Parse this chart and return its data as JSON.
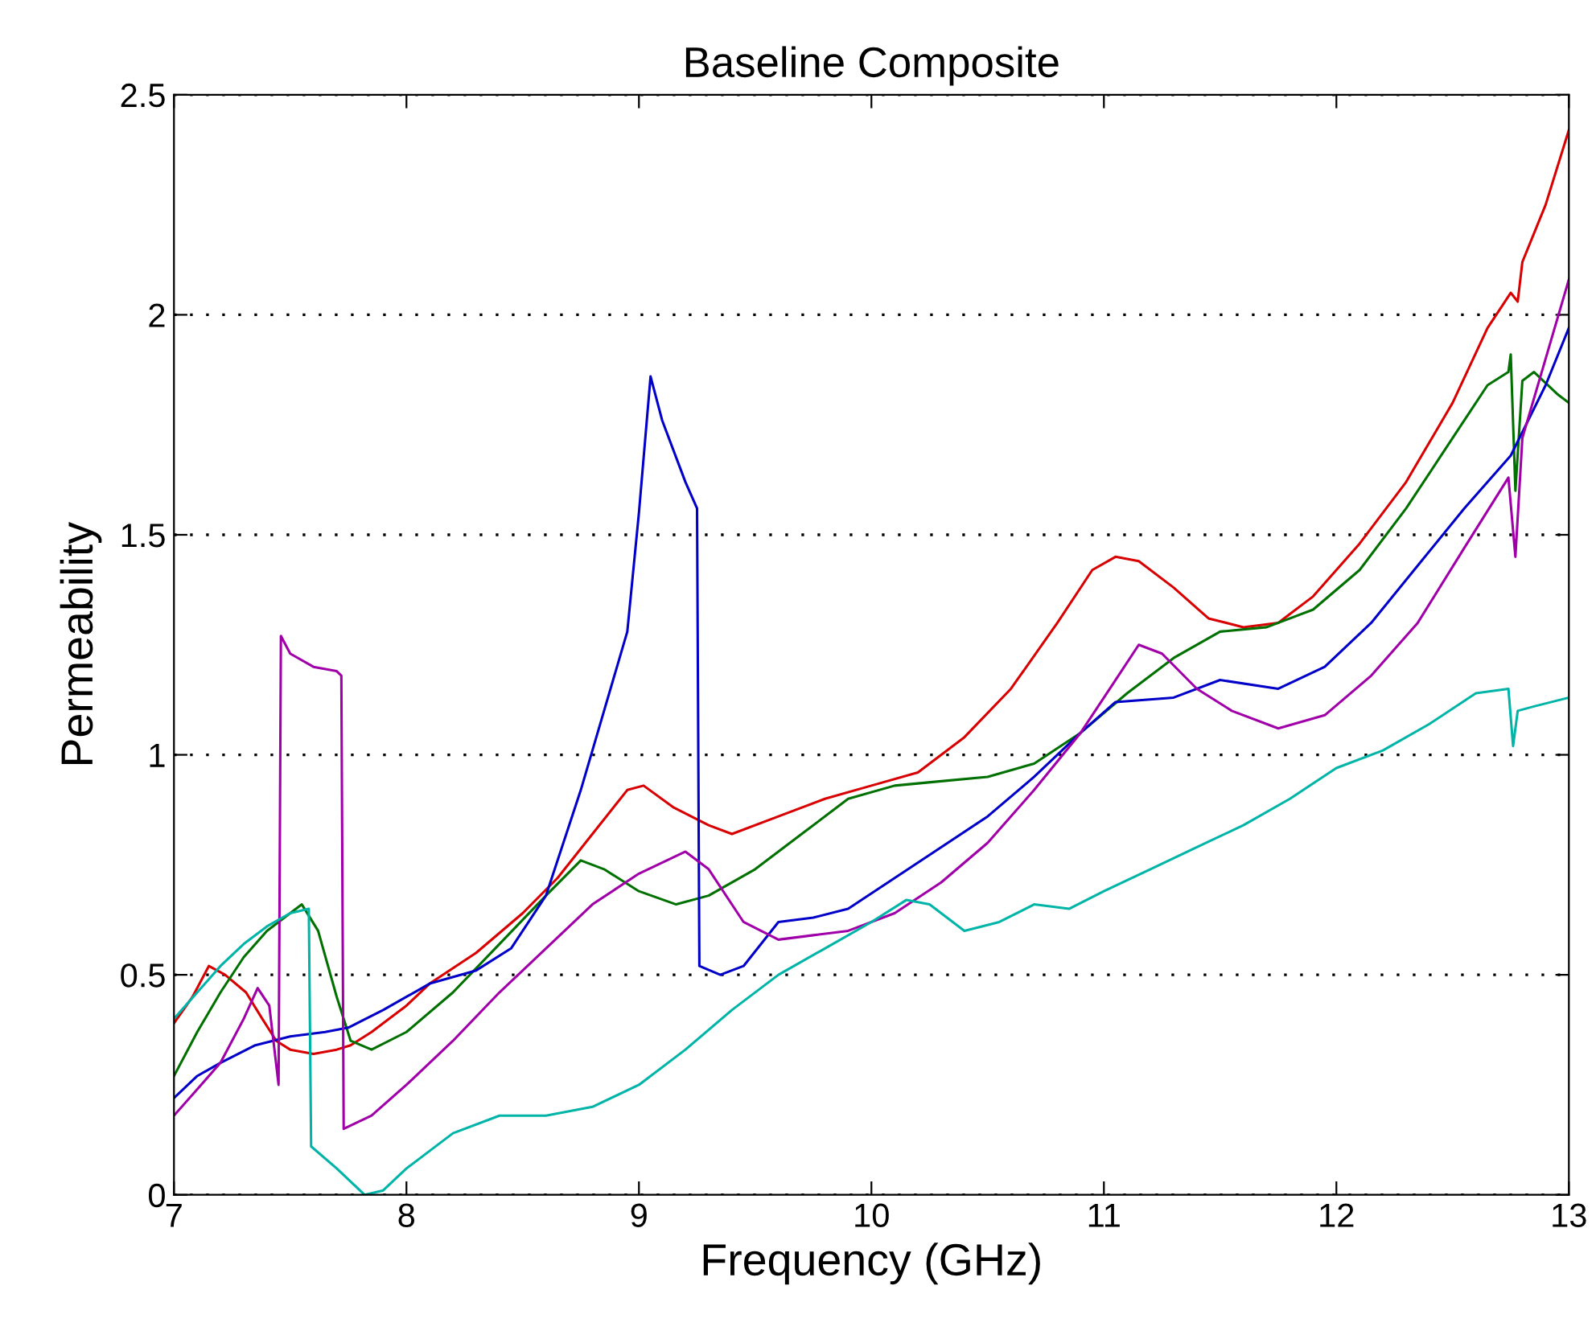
{
  "chart_data": {
    "type": "line",
    "title": "Baseline Composite",
    "xlabel": "Frequency (GHz)",
    "ylabel": "Permeability",
    "xlim": [
      7,
      13
    ],
    "ylim": [
      0,
      2.5
    ],
    "xticks": [
      7,
      8,
      9,
      10,
      11,
      12,
      13
    ],
    "yticks": [
      0,
      0.5,
      1,
      1.5,
      2,
      2.5
    ],
    "grid": "y",
    "line_style": "solid",
    "marker": "none",
    "series": [
      {
        "color": "#d80000",
        "x": [
          7,
          7.08,
          7.15,
          7.22,
          7.31,
          7.38,
          7.44,
          7.5,
          7.6,
          7.7,
          7.76,
          7.85,
          8.0,
          8.1,
          8.3,
          8.5,
          8.65,
          8.8,
          8.95,
          9.02,
          9.15,
          9.3,
          9.4,
          9.6,
          9.8,
          10.0,
          10.2,
          10.4,
          10.6,
          10.8,
          10.95,
          11.05,
          11.15,
          11.3,
          11.45,
          11.6,
          11.75,
          11.9,
          12.1,
          12.3,
          12.5,
          12.65,
          12.75,
          12.78,
          12.8,
          12.9,
          13
        ],
        "values": [
          0.39,
          0.45,
          0.52,
          0.5,
          0.46,
          0.4,
          0.35,
          0.33,
          0.32,
          0.33,
          0.34,
          0.37,
          0.43,
          0.48,
          0.55,
          0.64,
          0.72,
          0.82,
          0.92,
          0.93,
          0.88,
          0.84,
          0.82,
          0.86,
          0.9,
          0.93,
          0.96,
          1.04,
          1.15,
          1.3,
          1.42,
          1.45,
          1.44,
          1.38,
          1.31,
          1.29,
          1.3,
          1.36,
          1.48,
          1.62,
          1.8,
          1.97,
          2.05,
          2.03,
          2.12,
          2.25,
          2.42
        ]
      },
      {
        "color": "#007000",
        "x": [
          7,
          7.1,
          7.2,
          7.3,
          7.4,
          7.5,
          7.55,
          7.62,
          7.7,
          7.76,
          7.85,
          8.0,
          8.2,
          8.4,
          8.6,
          8.75,
          8.85,
          9.0,
          9.16,
          9.3,
          9.5,
          9.7,
          9.9,
          10.1,
          10.3,
          10.5,
          10.7,
          10.9,
          11.1,
          11.3,
          11.5,
          11.7,
          11.9,
          12.1,
          12.3,
          12.5,
          12.65,
          12.74,
          12.75,
          12.77,
          12.8,
          12.85,
          12.95,
          13
        ],
        "values": [
          0.27,
          0.37,
          0.46,
          0.54,
          0.6,
          0.64,
          0.66,
          0.6,
          0.45,
          0.35,
          0.33,
          0.37,
          0.46,
          0.57,
          0.68,
          0.76,
          0.74,
          0.69,
          0.66,
          0.68,
          0.74,
          0.82,
          0.9,
          0.93,
          0.94,
          0.95,
          0.98,
          1.05,
          1.14,
          1.22,
          1.28,
          1.29,
          1.33,
          1.42,
          1.56,
          1.72,
          1.84,
          1.87,
          1.91,
          1.6,
          1.85,
          1.87,
          1.82,
          1.8
        ]
      },
      {
        "color": "#0000c8",
        "x": [
          7,
          7.1,
          7.2,
          7.35,
          7.5,
          7.65,
          7.75,
          7.9,
          8.1,
          8.3,
          8.45,
          8.6,
          8.75,
          8.85,
          8.95,
          9.0,
          9.05,
          9.1,
          9.2,
          9.25,
          9.26,
          9.35,
          9.45,
          9.6,
          9.75,
          9.9,
          10.1,
          10.3,
          10.5,
          10.7,
          10.9,
          11.05,
          11.3,
          11.5,
          11.75,
          11.95,
          12.15,
          12.35,
          12.55,
          12.75,
          12.9,
          13
        ],
        "values": [
          0.22,
          0.27,
          0.3,
          0.34,
          0.36,
          0.37,
          0.38,
          0.42,
          0.48,
          0.51,
          0.56,
          0.68,
          0.92,
          1.1,
          1.28,
          1.55,
          1.86,
          1.76,
          1.62,
          1.56,
          0.52,
          0.5,
          0.52,
          0.62,
          0.63,
          0.65,
          0.72,
          0.79,
          0.86,
          0.95,
          1.05,
          1.12,
          1.13,
          1.17,
          1.15,
          1.2,
          1.3,
          1.43,
          1.56,
          1.68,
          1.84,
          1.97
        ]
      },
      {
        "color": "#a000a8",
        "x": [
          7,
          7.1,
          7.2,
          7.3,
          7.36,
          7.41,
          7.45,
          7.46,
          7.5,
          7.6,
          7.7,
          7.72,
          7.73,
          7.85,
          8.0,
          8.2,
          8.4,
          8.6,
          8.8,
          9.0,
          9.2,
          9.3,
          9.45,
          9.6,
          9.75,
          9.9,
          10.1,
          10.3,
          10.5,
          10.7,
          10.9,
          11.05,
          11.15,
          11.25,
          11.4,
          11.55,
          11.75,
          11.95,
          12.15,
          12.35,
          12.55,
          12.74,
          12.77,
          12.8,
          12.9,
          13
        ],
        "values": [
          0.18,
          0.24,
          0.3,
          0.4,
          0.47,
          0.43,
          0.25,
          1.27,
          1.23,
          1.2,
          1.19,
          1.18,
          0.15,
          0.18,
          0.25,
          0.35,
          0.46,
          0.56,
          0.66,
          0.73,
          0.78,
          0.74,
          0.62,
          0.58,
          0.59,
          0.6,
          0.64,
          0.71,
          0.8,
          0.92,
          1.05,
          1.17,
          1.25,
          1.23,
          1.15,
          1.1,
          1.06,
          1.09,
          1.18,
          1.3,
          1.47,
          1.63,
          1.45,
          1.72,
          1.9,
          2.08
        ]
      },
      {
        "color": "#00b4a8",
        "x": [
          7,
          7.1,
          7.2,
          7.3,
          7.4,
          7.5,
          7.58,
          7.59,
          7.7,
          7.82,
          7.9,
          8.0,
          8.2,
          8.4,
          8.6,
          8.8,
          9.0,
          9.2,
          9.4,
          9.6,
          9.8,
          10.0,
          10.15,
          10.25,
          10.4,
          10.55,
          10.7,
          10.85,
          11.0,
          11.2,
          11.4,
          11.6,
          11.8,
          12.0,
          12.2,
          12.4,
          12.6,
          12.74,
          12.76,
          12.78,
          12.85,
          13
        ],
        "values": [
          0.4,
          0.46,
          0.52,
          0.57,
          0.61,
          0.64,
          0.65,
          0.11,
          0.06,
          0.0,
          0.01,
          0.06,
          0.14,
          0.18,
          0.18,
          0.2,
          0.25,
          0.33,
          0.42,
          0.5,
          0.56,
          0.62,
          0.67,
          0.66,
          0.6,
          0.62,
          0.66,
          0.65,
          0.69,
          0.74,
          0.79,
          0.84,
          0.9,
          0.97,
          1.01,
          1.07,
          1.14,
          1.15,
          1.02,
          1.1,
          1.11,
          1.13
        ]
      }
    ]
  }
}
